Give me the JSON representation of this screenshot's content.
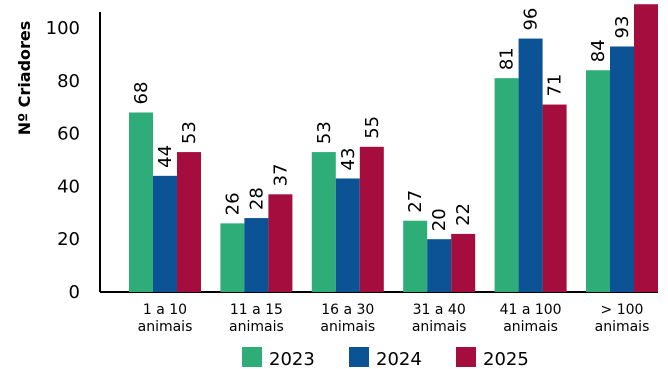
{
  "chart_data": {
    "type": "bar",
    "title": "",
    "xlabel": "",
    "ylabel": "Nº Criadores",
    "ylim": [
      0,
      100
    ],
    "yticks": [
      0,
      20,
      40,
      60,
      80,
      100
    ],
    "grid": false,
    "legend": "bottom",
    "categories": [
      [
        "1 a 10",
        "animais"
      ],
      [
        "11 a 15",
        "animais"
      ],
      [
        "16 a 30",
        "animais"
      ],
      [
        "31 a 40",
        "animais"
      ],
      [
        "41 a 100",
        "animais"
      ],
      [
        "> 100",
        "animais"
      ]
    ],
    "series": [
      {
        "name": "2023",
        "color": "#2EAD78",
        "values": [
          68,
          26,
          53,
          27,
          81,
          84
        ]
      },
      {
        "name": "2024",
        "color": "#0B5394",
        "values": [
          44,
          28,
          43,
          20,
          96,
          93
        ]
      },
      {
        "name": "2025",
        "color": "#A50D3E",
        "values": [
          53,
          37,
          55,
          22,
          71,
          109
        ]
      }
    ]
  }
}
